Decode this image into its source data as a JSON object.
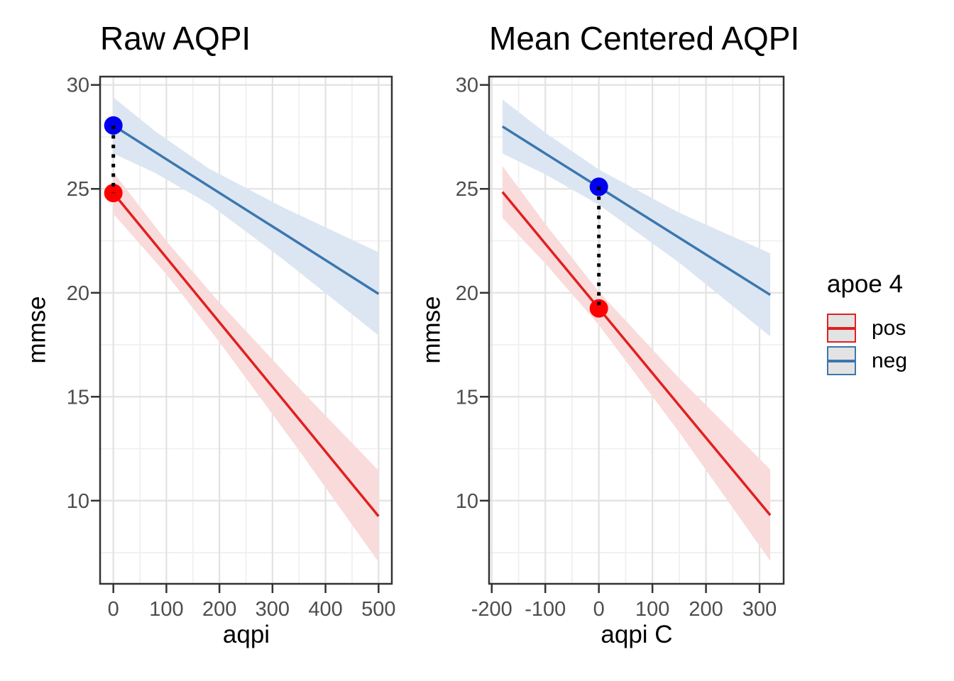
{
  "chart_data": [
    {
      "type": "line",
      "title": "Raw AQPI",
      "xlabel": "aqpi",
      "ylabel": "mmse",
      "xlim": [
        -25,
        525
      ],
      "ylim": [
        6,
        30.4
      ],
      "grid": true,
      "xticks": [
        0,
        100,
        200,
        300,
        400,
        500
      ],
      "xminor": [
        50,
        150,
        250,
        350,
        450
      ],
      "yticks": [
        10,
        15,
        20,
        25,
        30
      ],
      "yminor": [
        7.5,
        12.5,
        17.5,
        22.5,
        27.5
      ],
      "series": [
        {
          "name": "neg",
          "line_color": "#3C77B0",
          "band_color": "#DCE6F2",
          "x": [
            0,
            80,
            180,
            320,
            500
          ],
          "y": [
            28.05,
            26.75,
            25.13,
            22.87,
            19.95
          ],
          "band_top": [
            29.4,
            27.75,
            25.98,
            24.11,
            21.95
          ],
          "band_bottom": [
            26.7,
            25.75,
            24.28,
            21.61,
            17.95
          ]
        },
        {
          "name": "pos",
          "line_color": "#E02020",
          "band_color": "#F9DBDB",
          "x": [
            0,
            100,
            200,
            350,
            500
          ],
          "y": [
            24.8,
            21.69,
            18.58,
            13.92,
            9.25
          ],
          "band_top": [
            25.8,
            22.49,
            19.53,
            15.42,
            11.45
          ],
          "band_bottom": [
            23.8,
            20.89,
            17.63,
            12.42,
            7.05
          ]
        }
      ],
      "points": [
        {
          "group": "neg",
          "x": 0,
          "y": 28.05,
          "color": "#0000EE"
        },
        {
          "group": "pos",
          "x": 0,
          "y": 24.8,
          "color": "#FF0000"
        }
      ],
      "connector": {
        "x": 0,
        "y1": 28.05,
        "y2": 24.8
      }
    },
    {
      "type": "line",
      "title": "Mean Centered AQPI",
      "xlabel": "aqpi C",
      "ylabel": "mmse",
      "xlim": [
        -205,
        345
      ],
      "ylim": [
        6,
        30.4
      ],
      "grid": true,
      "xticks": [
        -200,
        -100,
        0,
        100,
        200,
        300
      ],
      "xminor": [
        -150,
        -50,
        50,
        150,
        250
      ],
      "yticks": [
        10,
        15,
        20,
        25,
        30
      ],
      "yminor": [
        7.5,
        12.5,
        17.5,
        22.5,
        27.5
      ],
      "series": [
        {
          "name": "neg",
          "line_color": "#3C77B0",
          "band_color": "#DCE6F2",
          "x": [
            -180,
            -100,
            0,
            150,
            320
          ],
          "y": [
            28.0,
            26.7,
            25.08,
            22.65,
            19.9
          ],
          "band_top": [
            29.3,
            27.7,
            25.93,
            23.85,
            21.9
          ],
          "band_bottom": [
            26.7,
            25.7,
            24.23,
            21.45,
            17.9
          ]
        },
        {
          "name": "pos",
          "line_color": "#E02020",
          "band_color": "#F9DBDB",
          "x": [
            -180,
            -100,
            0,
            150,
            320
          ],
          "y": [
            24.85,
            22.36,
            19.25,
            14.58,
            9.3
          ],
          "band_top": [
            26.1,
            23.31,
            20.05,
            15.89,
            11.5
          ],
          "band_bottom": [
            23.6,
            21.41,
            18.45,
            13.29,
            7.1
          ]
        }
      ],
      "points": [
        {
          "group": "neg",
          "x": 0,
          "y": 25.1,
          "color": "#0000EE"
        },
        {
          "group": "pos",
          "x": 0,
          "y": 19.25,
          "color": "#FF0000"
        }
      ],
      "connector": {
        "x": 0,
        "y1": 25.1,
        "y2": 19.25
      }
    }
  ],
  "legend": {
    "title": "apoe 4",
    "items": [
      {
        "label": "pos",
        "color": "#E02020"
      },
      {
        "label": "neg",
        "color": "#3C77B0"
      }
    ],
    "key_fill": "#E3E3E3"
  },
  "style_colors": {
    "background": "#FFFFFF",
    "grid_major": "#E2E2E2",
    "grid_minor": "#F0F0F0",
    "panel_border": "#333333",
    "tick_mark": "#333333",
    "tick_label": "#4D4D4D",
    "connector": "#000000"
  }
}
